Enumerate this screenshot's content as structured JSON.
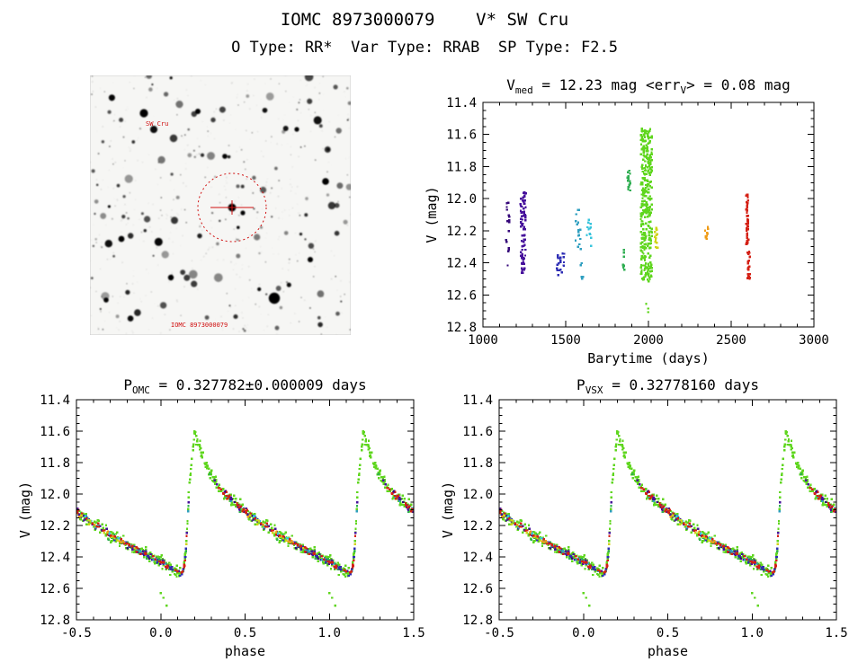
{
  "page": {
    "title": "IOMC 8973000079    V* SW Cru",
    "subtitle": "O Type: RR*  Var Type: RRAB  SP Type: F2.5"
  },
  "finder": {
    "seed": 7,
    "n_stars": 240,
    "marker_color": "#d01010",
    "label_top": "SW Cru",
    "label_bottom": "IOMC 8973000079"
  },
  "chart_data": [
    {
      "id": "barytime-lightcurve",
      "type": "scatter",
      "seed": 5,
      "title_parts": [
        {
          "t": "V"
        },
        {
          "t": "med",
          "sub": true
        },
        {
          "t": " = 12.23 mag <err"
        },
        {
          "t": "V",
          "sub": true
        },
        {
          "t": "> = 0.08 mag"
        }
      ],
      "xlabel": "Barytime (days)",
      "ylabel": "V (mag)",
      "xlim": [
        1000,
        3000
      ],
      "ylim": [
        11.4,
        12.8
      ],
      "y_axis_direction": "magnitudes increase downward (brighter up)",
      "xticks": [
        [
          1000,
          "1000"
        ],
        [
          1500,
          "1500"
        ],
        [
          2000,
          "2000"
        ],
        [
          2500,
          "2500"
        ],
        [
          3000,
          "3000"
        ]
      ],
      "yticks": [
        [
          11.4,
          "11.4"
        ],
        [
          11.6,
          "11.6"
        ],
        [
          11.8,
          "11.8"
        ],
        [
          12.0,
          "12.0"
        ],
        [
          12.2,
          "12.2"
        ],
        [
          12.4,
          "12.4"
        ],
        [
          12.6,
          "12.6"
        ],
        [
          12.8,
          "12.8"
        ]
      ],
      "xminor": 100,
      "yminor": 0.05,
      "clusters": [
        {
          "t": 1150,
          "dt": 12,
          "n": 16,
          "v": [
            12.02,
            12.42
          ],
          "color": "#35077a"
        },
        {
          "t": 1243,
          "dt": 16,
          "n": 75,
          "v": [
            11.96,
            12.47
          ],
          "color": "#46109b"
        },
        {
          "t": 1468,
          "dt": 22,
          "n": 22,
          "v": [
            12.33,
            12.5
          ],
          "color": "#2d2db4"
        },
        {
          "t": 1578,
          "dt": 18,
          "n": 16,
          "v": [
            12.07,
            12.32
          ],
          "color": "#2f9fc0"
        },
        {
          "t": 1598,
          "dt": 8,
          "n": 5,
          "v": [
            12.4,
            12.5
          ],
          "color": "#2f9fc0"
        },
        {
          "t": 1642,
          "dt": 16,
          "n": 12,
          "v": [
            12.12,
            12.3
          ],
          "color": "#38c4dc"
        },
        {
          "t": 1852,
          "dt": 10,
          "n": 9,
          "v": [
            12.3,
            12.46
          ],
          "color": "#2fae52"
        },
        {
          "t": 1882,
          "dt": 10,
          "n": 14,
          "v": [
            11.82,
            11.99
          ],
          "color": "#2fae52"
        },
        {
          "t": 1988,
          "dt": 34,
          "n": 340,
          "v": [
            11.56,
            12.52
          ],
          "color": "#5fd61e"
        },
        {
          "t": 1992,
          "dt": 12,
          "n": 3,
          "v": [
            12.62,
            12.72
          ],
          "color": "#5fd61e"
        },
        {
          "t": 2048,
          "dt": 10,
          "n": 14,
          "v": [
            12.18,
            12.31
          ],
          "color": "#cfd318"
        },
        {
          "t": 2350,
          "dt": 10,
          "n": 10,
          "v": [
            12.14,
            12.26
          ],
          "color": "#ef9b16"
        },
        {
          "t": 2598,
          "dt": 8,
          "n": 46,
          "v": [
            11.95,
            12.3
          ],
          "color": "#d42015"
        },
        {
          "t": 2606,
          "dt": 8,
          "n": 26,
          "v": [
            12.33,
            12.5
          ],
          "color": "#d42015"
        }
      ]
    },
    {
      "id": "phase-folded-omc-period",
      "type": "scatter",
      "seed": 11,
      "title_parts": [
        {
          "t": "P"
        },
        {
          "t": "OMC",
          "sub": true
        },
        {
          "t": " = 0.327782±0.000009 days"
        }
      ],
      "xlabel": "phase",
      "ylabel": "V (mag)",
      "xlim": [
        -0.5,
        1.5
      ],
      "ylim": [
        11.4,
        12.8
      ],
      "xticks": [
        [
          -0.5,
          "-0.5"
        ],
        [
          0,
          "0.0"
        ],
        [
          0.5,
          "0.5"
        ],
        [
          1,
          "1.0"
        ],
        [
          1.5,
          "1.5"
        ]
      ],
      "yticks": [
        [
          11.4,
          "11.4"
        ],
        [
          11.6,
          "11.6"
        ],
        [
          11.8,
          "11.8"
        ],
        [
          12.0,
          "12.0"
        ],
        [
          12.2,
          "12.2"
        ],
        [
          12.4,
          "12.4"
        ],
        [
          12.6,
          "12.6"
        ],
        [
          12.8,
          "12.8"
        ]
      ],
      "xminor": 0.1,
      "yminor": 0.05,
      "template": [
        [
          0.0,
          12.43
        ],
        [
          0.06,
          12.47
        ],
        [
          0.1,
          12.5
        ],
        [
          0.13,
          12.52
        ],
        [
          0.15,
          12.35
        ],
        [
          0.17,
          11.95
        ],
        [
          0.2,
          11.62
        ],
        [
          0.23,
          11.7
        ],
        [
          0.27,
          11.82
        ],
        [
          0.32,
          11.92
        ],
        [
          0.4,
          12.02
        ],
        [
          0.5,
          12.11
        ],
        [
          0.6,
          12.19
        ],
        [
          0.7,
          12.26
        ],
        [
          0.8,
          12.32
        ],
        [
          0.9,
          12.38
        ],
        [
          1.0,
          12.43
        ]
      ],
      "series": [
        {
          "n": 360,
          "noise": 0.055,
          "color": "#5fd61e"
        },
        {
          "n": 20,
          "noise": 0.04,
          "color": "#2fae52",
          "v": [
            11.8,
            12.46
          ]
        },
        {
          "n": 60,
          "noise": 0.035,
          "color": "#46109b",
          "v": [
            11.96,
            12.45
          ]
        },
        {
          "n": 16,
          "noise": 0.035,
          "color": "#35077a",
          "v": [
            12.02,
            12.42
          ]
        },
        {
          "n": 22,
          "noise": 0.03,
          "color": "#2d2db4",
          "v": [
            12.33,
            12.52
          ]
        },
        {
          "n": 18,
          "noise": 0.03,
          "color": "#2f9fc0",
          "v": [
            12.07,
            12.45
          ]
        },
        {
          "n": 12,
          "noise": 0.03,
          "color": "#38c4dc",
          "v": [
            12.12,
            12.3
          ]
        },
        {
          "n": 14,
          "noise": 0.03,
          "color": "#cfd318",
          "v": [
            12.18,
            12.31
          ]
        },
        {
          "n": 10,
          "noise": 0.03,
          "color": "#ef9b16",
          "v": [
            12.14,
            12.26
          ]
        },
        {
          "n": 65,
          "noise": 0.035,
          "color": "#d42015",
          "v": [
            12.0,
            12.48
          ]
        }
      ],
      "outliers": [
        [
          0.015,
          12.66
        ],
        [
          0.035,
          12.71
        ],
        [
          0.0,
          12.63
        ]
      ],
      "outlier_color": "#5fd61e"
    },
    {
      "id": "phase-folded-vsx-period",
      "type": "scatter",
      "seed": 11,
      "title_parts": [
        {
          "t": "P"
        },
        {
          "t": "VSX",
          "sub": true
        },
        {
          "t": " = 0.32778160 days"
        }
      ],
      "xlabel": "phase",
      "ylabel": "V (mag)",
      "xlim": [
        -0.5,
        1.5
      ],
      "ylim": [
        11.4,
        12.8
      ],
      "xticks": [
        [
          -0.5,
          "-0.5"
        ],
        [
          0,
          "0.0"
        ],
        [
          0.5,
          "0.5"
        ],
        [
          1,
          "1.0"
        ],
        [
          1.5,
          "1.5"
        ]
      ],
      "yticks": [
        [
          11.4,
          "11.4"
        ],
        [
          11.6,
          "11.6"
        ],
        [
          11.8,
          "11.8"
        ],
        [
          12.0,
          "12.0"
        ],
        [
          12.2,
          "12.2"
        ],
        [
          12.4,
          "12.4"
        ],
        [
          12.6,
          "12.6"
        ],
        [
          12.8,
          "12.8"
        ]
      ],
      "xminor": 0.1,
      "yminor": 0.05,
      "template": [
        [
          0.0,
          12.43
        ],
        [
          0.06,
          12.47
        ],
        [
          0.1,
          12.5
        ],
        [
          0.13,
          12.52
        ],
        [
          0.15,
          12.35
        ],
        [
          0.17,
          11.95
        ],
        [
          0.2,
          11.62
        ],
        [
          0.23,
          11.7
        ],
        [
          0.27,
          11.82
        ],
        [
          0.32,
          11.92
        ],
        [
          0.4,
          12.02
        ],
        [
          0.5,
          12.11
        ],
        [
          0.6,
          12.19
        ],
        [
          0.7,
          12.26
        ],
        [
          0.8,
          12.32
        ],
        [
          0.9,
          12.38
        ],
        [
          1.0,
          12.43
        ]
      ],
      "series": [
        {
          "n": 360,
          "noise": 0.055,
          "color": "#5fd61e"
        },
        {
          "n": 20,
          "noise": 0.04,
          "color": "#2fae52",
          "v": [
            11.8,
            12.46
          ]
        },
        {
          "n": 60,
          "noise": 0.035,
          "color": "#46109b",
          "v": [
            11.96,
            12.45
          ]
        },
        {
          "n": 16,
          "noise": 0.035,
          "color": "#35077a",
          "v": [
            12.02,
            12.42
          ]
        },
        {
          "n": 22,
          "noise": 0.03,
          "color": "#2d2db4",
          "v": [
            12.33,
            12.52
          ]
        },
        {
          "n": 18,
          "noise": 0.03,
          "color": "#2f9fc0",
          "v": [
            12.07,
            12.45
          ]
        },
        {
          "n": 12,
          "noise": 0.03,
          "color": "#38c4dc",
          "v": [
            12.12,
            12.3
          ]
        },
        {
          "n": 14,
          "noise": 0.03,
          "color": "#cfd318",
          "v": [
            12.18,
            12.31
          ]
        },
        {
          "n": 10,
          "noise": 0.03,
          "color": "#ef9b16",
          "v": [
            12.14,
            12.26
          ]
        },
        {
          "n": 65,
          "noise": 0.035,
          "color": "#d42015",
          "v": [
            12.0,
            12.48
          ]
        }
      ],
      "outliers": [
        [
          0.015,
          12.66
        ],
        [
          0.035,
          12.71
        ],
        [
          0.0,
          12.63
        ]
      ],
      "outlier_color": "#5fd61e"
    }
  ]
}
